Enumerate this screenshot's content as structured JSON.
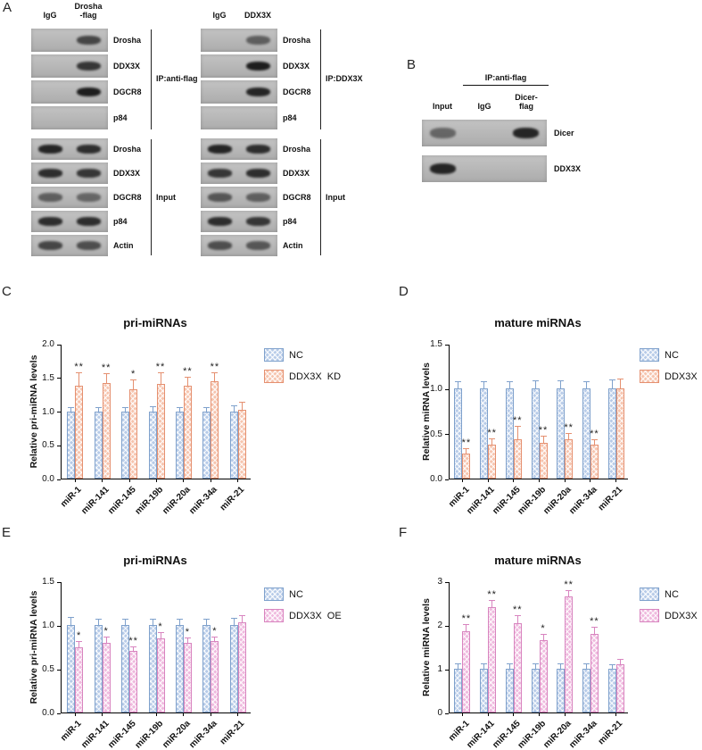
{
  "panel_labels": {
    "a": "A",
    "b": "B",
    "c": "C",
    "d": "D",
    "e": "E",
    "f": "F"
  },
  "panels": {
    "a": {
      "groups": [
        {
          "lane_headers": [
            [
              "IgG"
            ],
            [
              "Drosha",
              "-flag"
            ]
          ],
          "ip_bracket_label": "IP:anti-flag",
          "input_bracket_label": "Input",
          "ip_rows": [
            {
              "label": "Drosha",
              "bands": [
                0,
                0.7
              ]
            },
            {
              "label": "DDX3X",
              "bands": [
                0,
                0.8
              ]
            },
            {
              "label": "DGCR8",
              "bands": [
                0,
                0.95
              ]
            },
            {
              "label": "p84",
              "bands": [
                0,
                0
              ]
            }
          ],
          "input_rows": [
            {
              "label": "Drosha",
              "bands": [
                0.9,
                0.85
              ]
            },
            {
              "label": "DDX3X",
              "bands": [
                0.85,
                0.8
              ]
            },
            {
              "label": "DGCR8",
              "bands": [
                0.55,
                0.5
              ]
            },
            {
              "label": "p84",
              "bands": [
                0.85,
                0.85
              ]
            },
            {
              "label": "Actin",
              "bands": [
                0.7,
                0.65
              ]
            }
          ]
        },
        {
          "lane_headers": [
            [
              "IgG"
            ],
            [
              "DDX3X"
            ]
          ],
          "ip_bracket_label": "IP:DDX3X",
          "input_bracket_label": "Input",
          "ip_rows": [
            {
              "label": "Drosha",
              "bands": [
                0,
                0.55
              ]
            },
            {
              "label": "DDX3X",
              "bands": [
                0,
                0.95
              ]
            },
            {
              "label": "DGCR8",
              "bands": [
                0,
                0.9
              ]
            },
            {
              "label": "p84",
              "bands": [
                0,
                0
              ]
            }
          ],
          "input_rows": [
            {
              "label": "Drosha",
              "bands": [
                0.9,
                0.85
              ]
            },
            {
              "label": "DDX3X",
              "bands": [
                0.8,
                0.85
              ]
            },
            {
              "label": "DGCR8",
              "bands": [
                0.6,
                0.55
              ]
            },
            {
              "label": "p84",
              "bands": [
                0.85,
                0.8
              ]
            },
            {
              "label": "Actin",
              "bands": [
                0.65,
                0.6
              ]
            }
          ]
        }
      ]
    },
    "b": {
      "header": "IP:anti-flag",
      "lane_headers": [
        [
          "Input"
        ],
        [
          "IgG"
        ],
        [
          "Dicer-",
          "flag"
        ]
      ],
      "rows": [
        {
          "label": "Dicer",
          "bands": [
            0.5,
            0,
            0.9
          ]
        },
        {
          "label": "DDX3X",
          "bands": [
            0.9,
            0,
            0
          ]
        }
      ]
    }
  },
  "chart_data": [
    {
      "panel": "C",
      "type": "bar",
      "title": "pri-miRNAs",
      "ylabel": "Relative pri-miRNA levels",
      "ylim": [
        0,
        2.0
      ],
      "yticks": [
        "0.0",
        "0.5",
        "1.0",
        "1.5",
        "2.0"
      ],
      "categories": [
        "miR-1",
        "miR-141",
        "miR-145",
        "miR-19b",
        "miR-20a",
        "miR-34a",
        "miR-21"
      ],
      "legend_position": "right",
      "grid": false,
      "series": [
        {
          "name": "NC",
          "fill": "#b7cbe8",
          "border": "#7fa1cc",
          "values": [
            1.0,
            1.0,
            1.0,
            1.0,
            1.0,
            1.0,
            1.0
          ],
          "errors": [
            0.05,
            0.05,
            0.05,
            0.06,
            0.05,
            0.05,
            0.07
          ],
          "sig": [
            "",
            "",
            "",
            "",
            "",
            "",
            ""
          ]
        },
        {
          "name": "DDX3X  KD",
          "fill": "#f6c4ae",
          "border": "#e59070",
          "values": [
            1.38,
            1.42,
            1.32,
            1.4,
            1.38,
            1.45,
            1.02
          ],
          "errors": [
            0.18,
            0.13,
            0.14,
            0.17,
            0.12,
            0.11,
            0.1
          ],
          "sig": [
            "**",
            "**",
            "*",
            "**",
            "**",
            "**",
            ""
          ]
        }
      ]
    },
    {
      "panel": "D",
      "type": "bar",
      "title": "mature miRNAs",
      "ylabel": "Relative miRNA levels",
      "ylim": [
        0,
        1.5
      ],
      "yticks": [
        "0.0",
        "0.5",
        "1.0",
        "1.5"
      ],
      "categories": [
        "miR-1",
        "miR-141",
        "miR-145",
        "miR-19b",
        "miR-20a",
        "miR-34a",
        "miR-21"
      ],
      "legend_position": "right",
      "grid": false,
      "series": [
        {
          "name": "NC",
          "fill": "#b7cbe8",
          "border": "#7fa1cc",
          "values": [
            1.0,
            1.0,
            1.0,
            1.0,
            1.0,
            1.0,
            1.0
          ],
          "errors": [
            0.07,
            0.07,
            0.07,
            0.08,
            0.08,
            0.07,
            0.09
          ],
          "sig": [
            "",
            "",
            "",
            "",
            "",
            "",
            ""
          ]
        },
        {
          "name": "DDX3X  KD",
          "fill": "#f6c4ae",
          "border": "#e59070",
          "values": [
            0.28,
            0.38,
            0.44,
            0.4,
            0.44,
            0.38,
            1.0
          ],
          "errors": [
            0.05,
            0.06,
            0.14,
            0.07,
            0.06,
            0.05,
            0.1
          ],
          "sig": [
            "**",
            "**",
            "**",
            "**",
            "**",
            "**",
            ""
          ]
        }
      ]
    },
    {
      "panel": "E",
      "type": "bar",
      "title": "pri-miRNAs",
      "ylabel": "Relative pri-miRNA levels",
      "ylim": [
        0,
        1.5
      ],
      "yticks": [
        "0.0",
        "0.5",
        "1.0",
        "1.5"
      ],
      "categories": [
        "miR-1",
        "miR-141",
        "miR-145",
        "miR-19b",
        "miR-20a",
        "miR-34a",
        "miR-21"
      ],
      "legend_position": "right",
      "grid": false,
      "series": [
        {
          "name": "NC",
          "fill": "#b7cbe8",
          "border": "#7fa1cc",
          "values": [
            1.0,
            1.0,
            1.0,
            1.0,
            1.0,
            1.0,
            1.0
          ],
          "errors": [
            0.08,
            0.06,
            0.06,
            0.06,
            0.06,
            0.06,
            0.07
          ],
          "sig": [
            "",
            "",
            "",
            "",
            "",
            "",
            ""
          ]
        },
        {
          "name": "DDX3X  OE",
          "fill": "#efb9de",
          "border": "#d884bf",
          "values": [
            0.75,
            0.8,
            0.7,
            0.85,
            0.8,
            0.82,
            1.03
          ],
          "errors": [
            0.06,
            0.06,
            0.05,
            0.06,
            0.05,
            0.04,
            0.07
          ],
          "sig": [
            "*",
            "*",
            "**",
            "*",
            "*",
            "*",
            ""
          ]
        }
      ]
    },
    {
      "panel": "F",
      "type": "bar",
      "title": "mature miRNAs",
      "ylabel": "Relative miRNA levels",
      "ylim": [
        0,
        3
      ],
      "yticks": [
        "0",
        "1",
        "2",
        "3"
      ],
      "categories": [
        "miR-1",
        "miR-141",
        "miR-145",
        "miR-19b",
        "miR-20a",
        "miR-34a",
        "miR-21"
      ],
      "legend_position": "right",
      "grid": false,
      "series": [
        {
          "name": "NC",
          "fill": "#b7cbe8",
          "border": "#7fa1cc",
          "values": [
            1.0,
            1.0,
            1.0,
            1.0,
            1.0,
            1.0,
            1.0
          ],
          "errors": [
            0.1,
            0.1,
            0.1,
            0.1,
            0.1,
            0.1,
            0.08
          ],
          "sig": [
            "",
            "",
            "",
            "",
            "",
            "",
            ""
          ]
        },
        {
          "name": "DDX3X  OE",
          "fill": "#efb9de",
          "border": "#d884bf",
          "values": [
            1.85,
            2.4,
            2.05,
            1.65,
            2.65,
            1.8,
            1.1
          ],
          "errors": [
            0.15,
            0.15,
            0.15,
            0.12,
            0.12,
            0.15,
            0.1
          ],
          "sig": [
            "**",
            "**",
            "**",
            "*",
            "**",
            "**",
            ""
          ]
        }
      ]
    }
  ]
}
